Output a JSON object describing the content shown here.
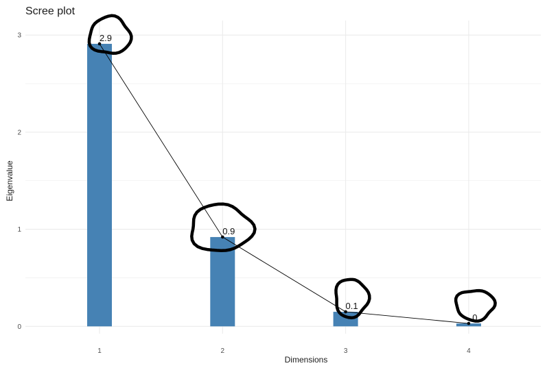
{
  "chart_data": {
    "type": "bar",
    "title": "Scree plot",
    "xlabel": "Dimensions",
    "ylabel": "Eigenvalue",
    "categories": [
      "1",
      "2",
      "3",
      "4"
    ],
    "values": [
      2.91,
      0.92,
      0.15,
      0.03
    ],
    "data_labels": [
      "2.9",
      "0.9",
      "0.1",
      "0"
    ],
    "ylim": [
      -0.05,
      3.2
    ],
    "yticks": [
      0,
      1,
      2,
      3
    ],
    "grid": true,
    "legend": "none",
    "overlay_line": true,
    "colors": {
      "bar": "#4682B4",
      "line": "#000000",
      "grid": "#EBEBEB",
      "annotation": "#000000"
    }
  }
}
